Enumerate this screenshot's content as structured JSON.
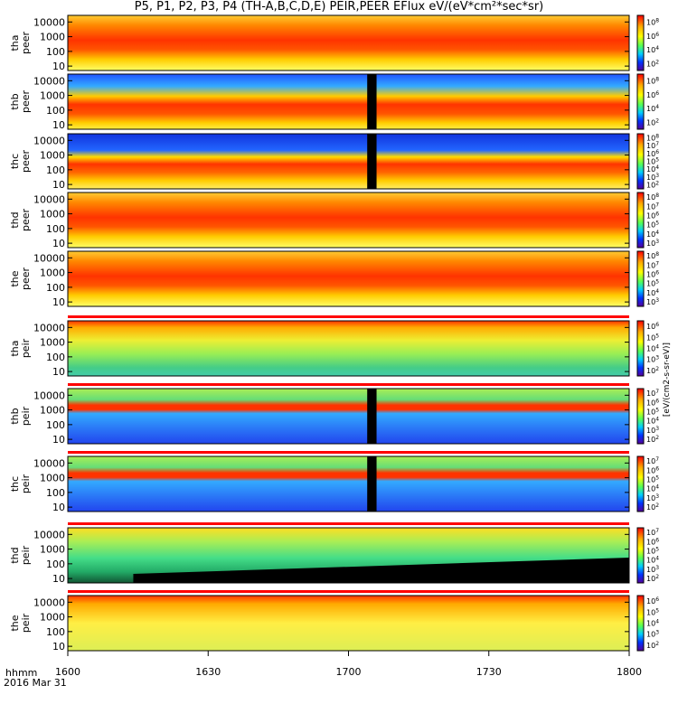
{
  "title": "P5, P1, P2, P3, P4 (TH-A,B,C,D,E) PEIR,PEER EFlux eV/(eV*cm²*sec*sr)",
  "x_axis_title_time": "hhmm",
  "x_axis_title_date": "2016 Mar 31",
  "colorbar_label": "[eV/(cm2-s-sr-eV)]",
  "chart_data": {
    "type": "heatmap",
    "x_range": [
      "16:00",
      "18:00"
    ],
    "x_ticks": [
      "1600",
      "1630",
      "1700",
      "1730",
      "1800"
    ],
    "y_scale": "log",
    "y_ticks": [
      "10",
      "100",
      "1000",
      "10000"
    ],
    "panels": [
      {
        "probe": "tha",
        "species": "peer",
        "ylabel": "tha peer",
        "cbar_ticks": [
          "10^2",
          "10^4",
          "10^6",
          "10^8"
        ],
        "mode_bar": false,
        "data_gap": null
      },
      {
        "probe": "thb",
        "species": "peer",
        "ylabel": "thb peer",
        "cbar_ticks": [
          "10^2",
          "10^4",
          "10^6",
          "10^8"
        ],
        "mode_bar": false,
        "data_gap": [
          "17:04",
          "17:06"
        ]
      },
      {
        "probe": "thc",
        "species": "peer",
        "ylabel": "thc peer",
        "cbar_ticks": [
          "10^2",
          "10^3",
          "10^4",
          "10^5",
          "10^6",
          "10^7",
          "10^8"
        ],
        "mode_bar": false,
        "data_gap": [
          "17:04",
          "17:06"
        ]
      },
      {
        "probe": "thd",
        "species": "peer",
        "ylabel": "thd peer",
        "cbar_ticks": [
          "10^3",
          "10^4",
          "10^5",
          "10^6",
          "10^7",
          "10^8"
        ],
        "mode_bar": false,
        "data_gap": null
      },
      {
        "probe": "the",
        "species": "peer",
        "ylabel": "the peer",
        "cbar_ticks": [
          "10^3",
          "10^4",
          "10^5",
          "10^6",
          "10^7",
          "10^8"
        ],
        "mode_bar": false,
        "data_gap": null
      },
      {
        "probe": "tha",
        "species": "peir",
        "ylabel": "tha peir",
        "cbar_ticks": [
          "10^2",
          "10^3",
          "10^4",
          "10^5",
          "10^6"
        ],
        "mode_bar": true,
        "data_gap": null
      },
      {
        "probe": "thb",
        "species": "peir",
        "ylabel": "thb peir",
        "cbar_ticks": [
          "10^2",
          "10^3",
          "10^4",
          "10^5",
          "10^6",
          "10^7"
        ],
        "mode_bar": true,
        "data_gap": [
          "17:04",
          "17:06"
        ]
      },
      {
        "probe": "thc",
        "species": "peir",
        "ylabel": "thc peir",
        "cbar_ticks": [
          "10^2",
          "10^3",
          "10^4",
          "10^5",
          "10^6",
          "10^7"
        ],
        "mode_bar": true,
        "data_gap": [
          "17:04",
          "17:06"
        ]
      },
      {
        "probe": "thd",
        "species": "peir",
        "ylabel": "thd peir",
        "cbar_ticks": [
          "10^2",
          "10^3",
          "10^4",
          "10^5",
          "10^6",
          "10^7"
        ],
        "mode_bar": true,
        "data_gap": null
      },
      {
        "probe": "the",
        "species": "peir",
        "ylabel": "the peir",
        "cbar_ticks": [
          "10^2",
          "10^3",
          "10^4",
          "10^5",
          "10^6"
        ],
        "mode_bar": true,
        "data_gap": null
      }
    ]
  }
}
